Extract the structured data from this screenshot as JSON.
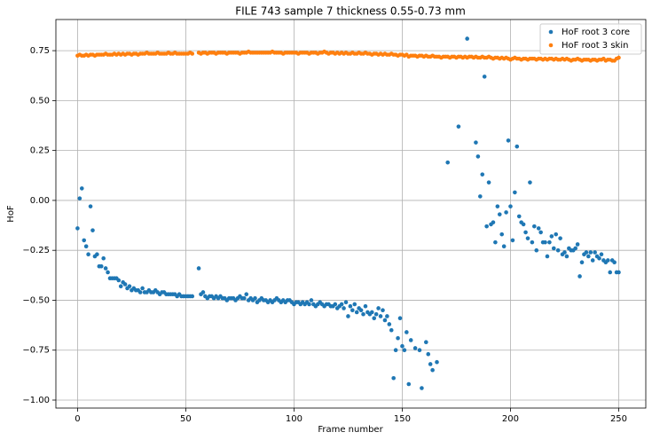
{
  "chart_data": {
    "type": "scatter",
    "title": "FILE 743 sample 7 thickness 0.55-0.73 mm",
    "x_label": "Frame number",
    "y_label": "HoF",
    "xlim": [
      -10,
      262.5
    ],
    "ylim": [
      -1.04,
      0.906
    ],
    "xticks": [
      0,
      50,
      100,
      150,
      200,
      250
    ],
    "yticks": [
      {
        "value": -1,
        "label": "−1.00"
      },
      {
        "value": -0.75,
        "label": "−0.75"
      },
      {
        "value": -0.5,
        "label": "−0.50"
      },
      {
        "value": -0.25,
        "label": "−0.25"
      },
      {
        "value": 0,
        "label": "0.00"
      },
      0.25,
      {
        "value": 0.5,
        "label": "0.50"
      },
      0.75
    ],
    "grid": true,
    "legend": "upper right",
    "series": [
      {
        "name": "HoF root 3 core",
        "color": "#1f77b4",
        "x": [
          0,
          1,
          2,
          3,
          4,
          5,
          6,
          7,
          8,
          9,
          10,
          11,
          12,
          13,
          14,
          15,
          16,
          17,
          18,
          19,
          20,
          21,
          22,
          23,
          24,
          25,
          26,
          27,
          28,
          29,
          30,
          31,
          32,
          33,
          34,
          35,
          36,
          37,
          38,
          39,
          40,
          41,
          42,
          43,
          44,
          45,
          46,
          47,
          48,
          49,
          50,
          51,
          52,
          53,
          56,
          57,
          58,
          59,
          60,
          61,
          62,
          63,
          64,
          65,
          66,
          67,
          68,
          69,
          70,
          71,
          72,
          73,
          74,
          75,
          76,
          77,
          78,
          79,
          80,
          81,
          82,
          83,
          84,
          85,
          86,
          87,
          88,
          89,
          90,
          91,
          92,
          93,
          94,
          95,
          96,
          97,
          98,
          99,
          100,
          101,
          102,
          103,
          104,
          105,
          106,
          107,
          108,
          109,
          110,
          111,
          112,
          113,
          114,
          115,
          116,
          117,
          118,
          119,
          120,
          121,
          122,
          123,
          124,
          125,
          126,
          127,
          128,
          129,
          130,
          131,
          132,
          133,
          134,
          135,
          136,
          137,
          138,
          139,
          140,
          141,
          142,
          143,
          144,
          145,
          146,
          147,
          148,
          149,
          150,
          151,
          152,
          153,
          154,
          156,
          158,
          159,
          161,
          162,
          163,
          164,
          166,
          171,
          176,
          180,
          184,
          185,
          186,
          187,
          188,
          189,
          190,
          191,
          192,
          193,
          194,
          195,
          196,
          197,
          198,
          199,
          200,
          201,
          202,
          203,
          204,
          205,
          206,
          207,
          208,
          209,
          210,
          211,
          212,
          213,
          214,
          215,
          216,
          217,
          218,
          219,
          220,
          221,
          222,
          223,
          224,
          225,
          226,
          227,
          228,
          229,
          230,
          231,
          232,
          233,
          234,
          235,
          236,
          237,
          238,
          239,
          240,
          241,
          242,
          243,
          244,
          245,
          246,
          247,
          248,
          249,
          250
        ],
        "values": [
          -0.14,
          0.01,
          0.06,
          -0.2,
          -0.23,
          -0.27,
          -0.03,
          -0.15,
          -0.28,
          -0.27,
          -0.33,
          -0.33,
          -0.29,
          -0.34,
          -0.36,
          -0.39,
          -0.39,
          -0.39,
          -0.39,
          -0.4,
          -0.43,
          -0.41,
          -0.42,
          -0.44,
          -0.43,
          -0.45,
          -0.44,
          -0.45,
          -0.45,
          -0.46,
          -0.44,
          -0.46,
          -0.46,
          -0.45,
          -0.46,
          -0.46,
          -0.45,
          -0.46,
          -0.47,
          -0.46,
          -0.46,
          -0.47,
          -0.47,
          -0.47,
          -0.47,
          -0.47,
          -0.48,
          -0.47,
          -0.48,
          -0.48,
          -0.48,
          -0.48,
          -0.48,
          -0.48,
          -0.34,
          -0.47,
          -0.46,
          -0.48,
          -0.49,
          -0.48,
          -0.48,
          -0.49,
          -0.48,
          -0.49,
          -0.48,
          -0.49,
          -0.49,
          -0.5,
          -0.49,
          -0.49,
          -0.49,
          -0.5,
          -0.49,
          -0.48,
          -0.49,
          -0.49,
          -0.47,
          -0.5,
          -0.49,
          -0.5,
          -0.49,
          -0.51,
          -0.5,
          -0.49,
          -0.5,
          -0.5,
          -0.51,
          -0.5,
          -0.51,
          -0.5,
          -0.49,
          -0.5,
          -0.51,
          -0.5,
          -0.51,
          -0.5,
          -0.5,
          -0.51,
          -0.52,
          -0.51,
          -0.51,
          -0.52,
          -0.51,
          -0.52,
          -0.51,
          -0.52,
          -0.5,
          -0.52,
          -0.53,
          -0.52,
          -0.51,
          -0.52,
          -0.53,
          -0.52,
          -0.52,
          -0.53,
          -0.53,
          -0.52,
          -0.54,
          -0.53,
          -0.52,
          -0.54,
          -0.51,
          -0.58,
          -0.53,
          -0.55,
          -0.52,
          -0.56,
          -0.54,
          -0.55,
          -0.57,
          -0.53,
          -0.56,
          -0.57,
          -0.56,
          -0.59,
          -0.57,
          -0.54,
          -0.58,
          -0.55,
          -0.6,
          -0.58,
          -0.62,
          -0.65,
          -0.89,
          -0.75,
          -0.69,
          -0.59,
          -0.73,
          -0.75,
          -0.66,
          -0.92,
          -0.7,
          -0.74,
          -0.75,
          -0.94,
          -0.71,
          -0.77,
          -0.82,
          -0.85,
          -0.81,
          0.19,
          0.37,
          0.81,
          0.29,
          0.22,
          0.02,
          0.13,
          0.62,
          -0.13,
          0.09,
          -0.12,
          -0.11,
          -0.21,
          -0.03,
          -0.07,
          -0.17,
          -0.23,
          -0.06,
          0.3,
          -0.03,
          -0.2,
          0.04,
          0.27,
          -0.08,
          -0.11,
          -0.12,
          -0.16,
          -0.19,
          0.09,
          -0.21,
          -0.13,
          -0.25,
          -0.14,
          -0.16,
          -0.21,
          -0.21,
          -0.28,
          -0.21,
          -0.18,
          -0.24,
          -0.17,
          -0.25,
          -0.19,
          -0.27,
          -0.26,
          -0.28,
          -0.24,
          -0.25,
          -0.25,
          -0.24,
          -0.22,
          -0.38,
          -0.31,
          -0.27,
          -0.26,
          -0.28,
          -0.26,
          -0.3,
          -0.26,
          -0.28,
          -0.29,
          -0.27,
          -0.3,
          -0.31,
          -0.3,
          -0.36,
          -0.3,
          -0.31,
          -0.36,
          -0.36
        ]
      },
      {
        "name": "HoF root 3 skin",
        "color": "#ff7f0e",
        "x": [
          0,
          1,
          2,
          3,
          4,
          5,
          6,
          7,
          8,
          9,
          10,
          11,
          12,
          13,
          14,
          15,
          16,
          17,
          18,
          19,
          20,
          21,
          22,
          23,
          24,
          25,
          26,
          27,
          28,
          29,
          30,
          31,
          32,
          33,
          34,
          35,
          36,
          37,
          38,
          39,
          40,
          41,
          42,
          43,
          44,
          45,
          46,
          47,
          48,
          49,
          50,
          51,
          52,
          53,
          56,
          57,
          58,
          59,
          60,
          61,
          62,
          63,
          64,
          65,
          66,
          67,
          68,
          69,
          70,
          71,
          72,
          73,
          74,
          75,
          76,
          77,
          78,
          79,
          80,
          81,
          82,
          83,
          84,
          85,
          86,
          87,
          88,
          89,
          90,
          91,
          92,
          93,
          94,
          95,
          96,
          97,
          98,
          99,
          100,
          101,
          102,
          103,
          104,
          105,
          106,
          107,
          108,
          109,
          110,
          111,
          112,
          113,
          114,
          115,
          116,
          117,
          118,
          119,
          120,
          121,
          122,
          123,
          124,
          125,
          126,
          127,
          128,
          129,
          130,
          131,
          132,
          133,
          134,
          135,
          136,
          137,
          138,
          139,
          140,
          141,
          142,
          143,
          144,
          145,
          146,
          147,
          148,
          149,
          150,
          151,
          152,
          153,
          154,
          155,
          156,
          157,
          158,
          159,
          160,
          161,
          162,
          163,
          164,
          165,
          166,
          167,
          168,
          169,
          170,
          171,
          172,
          173,
          174,
          175,
          176,
          177,
          178,
          179,
          180,
          181,
          182,
          183,
          184,
          185,
          186,
          187,
          188,
          189,
          190,
          191,
          192,
          193,
          194,
          195,
          196,
          197,
          198,
          199,
          200,
          201,
          202,
          203,
          204,
          205,
          206,
          207,
          208,
          209,
          210,
          211,
          212,
          213,
          214,
          215,
          216,
          217,
          218,
          219,
          220,
          221,
          222,
          223,
          224,
          225,
          226,
          227,
          228,
          229,
          230,
          231,
          232,
          233,
          234,
          235,
          236,
          237,
          238,
          239,
          240,
          241,
          242,
          243,
          244,
          245,
          246,
          247,
          248,
          249,
          250
        ],
        "values": [
          0.725,
          0.73,
          0.725,
          0.725,
          0.73,
          0.725,
          0.73,
          0.73,
          0.725,
          0.73,
          0.73,
          0.73,
          0.73,
          0.735,
          0.73,
          0.73,
          0.73,
          0.735,
          0.73,
          0.735,
          0.73,
          0.735,
          0.73,
          0.735,
          0.735,
          0.73,
          0.735,
          0.735,
          0.73,
          0.735,
          0.735,
          0.735,
          0.74,
          0.735,
          0.735,
          0.735,
          0.735,
          0.74,
          0.735,
          0.735,
          0.735,
          0.735,
          0.74,
          0.735,
          0.735,
          0.74,
          0.735,
          0.735,
          0.735,
          0.735,
          0.735,
          0.735,
          0.74,
          0.735,
          0.74,
          0.735,
          0.74,
          0.74,
          0.735,
          0.74,
          0.74,
          0.74,
          0.735,
          0.74,
          0.74,
          0.74,
          0.74,
          0.735,
          0.74,
          0.74,
          0.74,
          0.74,
          0.74,
          0.735,
          0.74,
          0.74,
          0.74,
          0.745,
          0.74,
          0.74,
          0.74,
          0.74,
          0.74,
          0.74,
          0.74,
          0.74,
          0.74,
          0.74,
          0.745,
          0.74,
          0.74,
          0.74,
          0.74,
          0.735,
          0.74,
          0.74,
          0.74,
          0.74,
          0.74,
          0.74,
          0.735,
          0.74,
          0.74,
          0.74,
          0.74,
          0.735,
          0.74,
          0.74,
          0.74,
          0.735,
          0.74,
          0.74,
          0.745,
          0.74,
          0.735,
          0.74,
          0.74,
          0.735,
          0.74,
          0.735,
          0.74,
          0.735,
          0.74,
          0.735,
          0.735,
          0.74,
          0.735,
          0.735,
          0.74,
          0.735,
          0.735,
          0.74,
          0.735,
          0.735,
          0.73,
          0.735,
          0.735,
          0.73,
          0.735,
          0.73,
          0.735,
          0.73,
          0.73,
          0.735,
          0.73,
          0.73,
          0.725,
          0.73,
          0.73,
          0.725,
          0.73,
          0.72,
          0.725,
          0.725,
          0.725,
          0.72,
          0.725,
          0.725,
          0.72,
          0.725,
          0.72,
          0.72,
          0.725,
          0.72,
          0.72,
          0.72,
          0.715,
          0.72,
          0.72,
          0.72,
          0.715,
          0.72,
          0.72,
          0.715,
          0.72,
          0.72,
          0.715,
          0.72,
          0.715,
          0.72,
          0.72,
          0.715,
          0.72,
          0.715,
          0.715,
          0.72,
          0.715,
          0.715,
          0.72,
          0.715,
          0.71,
          0.715,
          0.715,
          0.71,
          0.715,
          0.71,
          0.715,
          0.71,
          0.705,
          0.71,
          0.715,
          0.71,
          0.71,
          0.705,
          0.71,
          0.71,
          0.705,
          0.71,
          0.71,
          0.71,
          0.705,
          0.71,
          0.71,
          0.705,
          0.71,
          0.705,
          0.71,
          0.71,
          0.705,
          0.71,
          0.705,
          0.705,
          0.71,
          0.705,
          0.71,
          0.705,
          0.7,
          0.705,
          0.705,
          0.71,
          0.705,
          0.7,
          0.705,
          0.705,
          0.705,
          0.7,
          0.705,
          0.705,
          0.7,
          0.705,
          0.705,
          0.71,
          0.7,
          0.705,
          0.705,
          0.7,
          0.7,
          0.71,
          0.715
        ]
      }
    ]
  }
}
